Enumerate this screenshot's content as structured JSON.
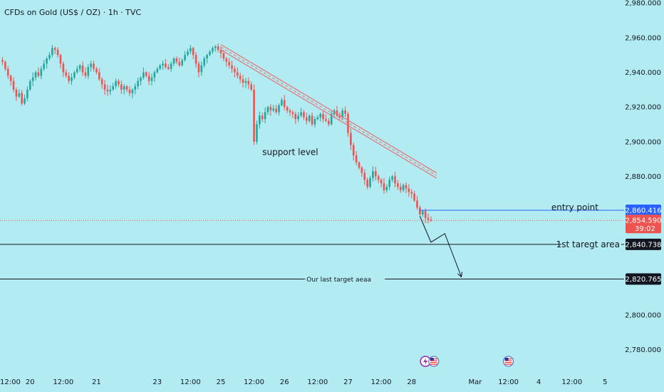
{
  "header": {
    "title": "CFDs on Gold (US$ / OZ) · 1h · TVC"
  },
  "colors": {
    "background": "#b2ebf2",
    "up": "#26a69a",
    "down": "#ef5350",
    "channel": "#e57373",
    "entry_line": "#2962ff",
    "target_line": "#131722",
    "blue_text": "#2962ff",
    "event_purple": "#9c27b0"
  },
  "chart_data": {
    "type": "candlestick",
    "ylim": [
      2770,
      2985
    ],
    "yticks": [
      "2,980.000",
      "2,960.000",
      "2,940.000",
      "2,920.000",
      "2,900.000",
      "2,880.000",
      "2,860.000",
      "2,840.000",
      "2,820.000",
      "2,800.000",
      "2,780.000"
    ],
    "ytick_values": [
      2980,
      2960,
      2940,
      2920,
      2900,
      2880,
      2860,
      2840,
      2820,
      2800,
      2780
    ],
    "xticks": [
      {
        "label": "12:00",
        "i": -2
      },
      {
        "label": "20",
        "i": 10
      },
      {
        "label": "12:00",
        "i": 22
      },
      {
        "label": "21",
        "i": 34
      },
      {
        "label": "23",
        "i": 56
      },
      {
        "label": "12:00",
        "i": 68
      },
      {
        "label": "25",
        "i": 79
      },
      {
        "label": "12:00",
        "i": 91
      },
      {
        "label": "26",
        "i": 102
      },
      {
        "label": "12:00",
        "i": 114
      },
      {
        "label": "27",
        "i": 125
      },
      {
        "label": "12:00",
        "i": 137
      },
      {
        "label": "28",
        "i": 148
      },
      {
        "label": "Mar",
        "i": 171
      },
      {
        "label": "12:00",
        "i": 183
      },
      {
        "label": "4",
        "i": 194
      },
      {
        "label": "12:00",
        "i": 206
      },
      {
        "label": "5",
        "i": 218
      }
    ],
    "closes": [
      2946,
      2942,
      2938,
      2935,
      2930,
      2926,
      2928,
      2922,
      2925,
      2930,
      2935,
      2937,
      2940,
      2938,
      2942,
      2945,
      2948,
      2950,
      2954,
      2953,
      2950,
      2945,
      2940,
      2938,
      2935,
      2937,
      2940,
      2942,
      2944,
      2940,
      2938,
      2943,
      2945,
      2942,
      2940,
      2936,
      2933,
      2930,
      2929,
      2930,
      2932,
      2935,
      2933,
      2930,
      2932,
      2930,
      2928,
      2930,
      2932,
      2935,
      2937,
      2940,
      2938,
      2935,
      2937,
      2940,
      2942,
      2944,
      2945,
      2943,
      2942,
      2945,
      2948,
      2946,
      2944,
      2947,
      2950,
      2952,
      2954,
      2950,
      2945,
      2940,
      2944,
      2948,
      2950,
      2952,
      2954,
      2955,
      2953,
      2951,
      2948,
      2946,
      2944,
      2942,
      2940,
      2938,
      2936,
      2934,
      2935,
      2933,
      2930,
      2900,
      2910,
      2915,
      2913,
      2917,
      2920,
      2918,
      2919,
      2917,
      2921,
      2924,
      2920,
      2918,
      2917,
      2916,
      2913,
      2915,
      2917,
      2914,
      2912,
      2915,
      2910,
      2913,
      2914,
      2916,
      2913,
      2912,
      2910,
      2916,
      2918,
      2915,
      2914,
      2918,
      2916,
      2905,
      2898,
      2892,
      2888,
      2885,
      2882,
      2878,
      2874,
      2879,
      2883,
      2880,
      2878,
      2876,
      2872,
      2874,
      2878,
      2880,
      2876,
      2874,
      2872,
      2875,
      2873,
      2871,
      2870,
      2866,
      2862,
      2858,
      2860,
      2856,
      2855,
      2854.59
    ],
    "start_open": 2947,
    "trend_channel": {
      "i1": 79,
      "v1": [
        2956,
        2953
      ],
      "i2": 157,
      "v2": [
        2882,
        2879
      ]
    },
    "entry_line": {
      "value": 2860.416,
      "i_start": 151
    },
    "target1_value": 2840.738,
    "target2_value": 2820.765,
    "current_price_value": 2854.59,
    "projection": [
      {
        "i": 151,
        "v": 2857
      },
      {
        "i": 155,
        "v": 2842
      },
      {
        "i": 160,
        "v": 2847
      },
      {
        "i": 166,
        "v": 2822
      }
    ],
    "annotations": {
      "support_label": {
        "text": "support level",
        "i": 94,
        "v": 2894
      },
      "entry_label": {
        "text": "entry point",
        "v": 2862
      },
      "target1_label": {
        "text": "1st taregt area",
        "v": 2840.738
      },
      "target2_label": {
        "text": "Our last target aeaa",
        "i": 110,
        "v": 2820.765
      }
    },
    "badges": {
      "entry": "2,860.416",
      "current": "2,854.590",
      "countdown": "39:02",
      "target1": "2,840.738",
      "target2": "2,820.765"
    },
    "events": [
      {
        "type": "lightning-icon",
        "i": 153
      },
      {
        "type": "us-flag-icon",
        "i": 156
      },
      {
        "type": "us-flag-icon",
        "i": 183
      }
    ]
  }
}
